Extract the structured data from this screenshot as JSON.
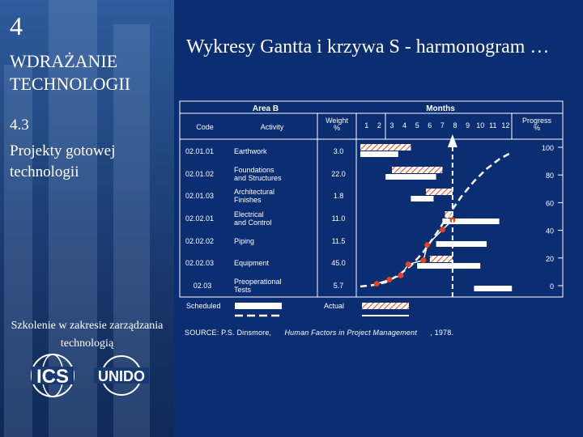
{
  "sidebar": {
    "section_number": "4",
    "section_title": "WDRAŻANIE TECHNOLOGII",
    "subsection_number": "4.3",
    "subsection_title": "Projekty gotowej technologii",
    "training_text": "Szkolenie w zakresie zarządzania technologią",
    "logos": [
      "ICS",
      "UNIDO"
    ]
  },
  "slide_title": "Wykresy Gantta i krzywa S - harmonogram …",
  "table": {
    "area_header": "Area B",
    "months_header": "Months",
    "col_code": "Code",
    "col_activity": "Activity",
    "col_weight": "Weight %",
    "col_progress": "Progress %",
    "months": [
      "1",
      "2",
      "3",
      "4",
      "5",
      "6",
      "7",
      "8",
      "9",
      "10",
      "11",
      "12"
    ],
    "progress_ticks": [
      "100",
      "80",
      "60",
      "40",
      "20",
      "0"
    ],
    "rows": [
      {
        "code": "02.01.01",
        "activity": [
          "Earthwork"
        ],
        "weight": "3.0"
      },
      {
        "code": "02.01.02",
        "activity": [
          "Foundations",
          "and Structures"
        ],
        "weight": "22.0"
      },
      {
        "code": "02.01.03",
        "activity": [
          "Architectural",
          "Finishes"
        ],
        "weight": "1.8"
      },
      {
        "code": "02.02.01",
        "activity": [
          "Electrical",
          "and Control"
        ],
        "weight": "11.0"
      },
      {
        "code": "02.02.02",
        "activity": [
          "Piping"
        ],
        "weight": "11.5"
      },
      {
        "code": "02.02.03",
        "activity": [
          "Equipment"
        ],
        "weight": "45.0"
      },
      {
        "code": "02.03",
        "activity": [
          "Preoperational",
          "Tests"
        ],
        "weight": "5.7"
      }
    ],
    "legend_scheduled": "Scheduled",
    "legend_actual": "Actual"
  },
  "chart_data": {
    "type": "gantt",
    "x_unit": "month",
    "xlim": [
      0,
      12
    ],
    "ylim": [
      0,
      100
    ],
    "status_date_month": 7.3,
    "scheduled": [
      {
        "code": "02.01.01",
        "start": 0.0,
        "end": 3.0
      },
      {
        "code": "02.01.02",
        "start": 2.0,
        "end": 6.0
      },
      {
        "code": "02.01.03",
        "start": 4.0,
        "end": 5.8
      },
      {
        "code": "02.02.01",
        "start": 6.5,
        "end": 11.0
      },
      {
        "code": "02.02.02",
        "start": 6.0,
        "end": 10.0
      },
      {
        "code": "02.02.03",
        "start": 4.5,
        "end": 9.5
      },
      {
        "code": "02.03",
        "start": 9.0,
        "end": 12.0
      }
    ],
    "actual": [
      {
        "code": "02.01.01",
        "start": 0.0,
        "end": 4.0
      },
      {
        "code": "02.01.02",
        "start": 2.5,
        "end": 6.5
      },
      {
        "code": "02.01.03",
        "start": 5.2,
        "end": 7.3
      },
      {
        "code": "02.02.01",
        "start": 6.7,
        "end": 7.3
      },
      {
        "code": "02.02.03",
        "start": 5.5,
        "end": 7.3
      }
    ],
    "s_curve_planned": [
      [
        0,
        0
      ],
      [
        1,
        1
      ],
      [
        2,
        3
      ],
      [
        3,
        8
      ],
      [
        4,
        15
      ],
      [
        5,
        25
      ],
      [
        6,
        38
      ],
      [
        7,
        52
      ],
      [
        8,
        65
      ],
      [
        9,
        76
      ],
      [
        10,
        85
      ],
      [
        11,
        92
      ],
      [
        12,
        97
      ]
    ],
    "s_curve_actual": [
      [
        1.3,
        2
      ],
      [
        2.3,
        5
      ],
      [
        3.2,
        8
      ],
      [
        3.8,
        16
      ],
      [
        5.0,
        19
      ],
      [
        5.3,
        30
      ],
      [
        6.5,
        41
      ],
      [
        7.3,
        48
      ]
    ]
  },
  "source": {
    "prefix": "SOURCE: P.S. Dinsmore,",
    "title": "Human Factors in Project Management",
    "suffix": ", 1978."
  }
}
